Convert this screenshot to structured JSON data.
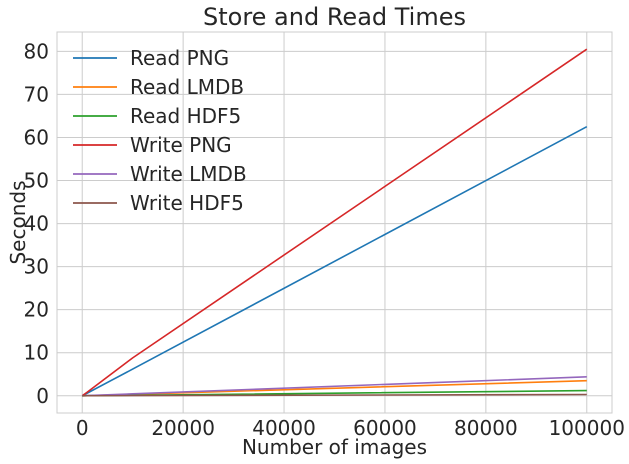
{
  "chart_data": {
    "type": "line",
    "title": "Store and Read Times",
    "xlabel": "Number of images",
    "ylabel": "Seconds",
    "x": [
      10,
      100,
      1000,
      10000,
      100000
    ],
    "xlim": [
      -5000,
      105000
    ],
    "ylim": [
      -4,
      84.5
    ],
    "xticks": [
      0,
      20000,
      40000,
      60000,
      80000,
      100000
    ],
    "yticks": [
      0,
      10,
      20,
      30,
      40,
      50,
      60,
      70,
      80
    ],
    "grid": true,
    "legend_position": "top-left",
    "series": [
      {
        "name": "Read PNG",
        "color": "#1f77b4",
        "values": [
          0.006,
          0.06,
          0.62,
          6.2,
          62.5
        ]
      },
      {
        "name": "Read LMDB",
        "color": "#ff7f0e",
        "values": [
          0.0004,
          0.004,
          0.035,
          0.35,
          3.5
        ]
      },
      {
        "name": "Read HDF5",
        "color": "#2ca02c",
        "values": [
          0.0001,
          0.001,
          0.012,
          0.12,
          1.2
        ]
      },
      {
        "name": "Write PNG",
        "color": "#d62728",
        "values": [
          0.008,
          0.08,
          0.85,
          8.8,
          80.5
        ]
      },
      {
        "name": "Write LMDB",
        "color": "#9467bd",
        "values": [
          0.0005,
          0.005,
          0.045,
          0.45,
          4.4
        ]
      },
      {
        "name": "Write HDF5",
        "color": "#8c564b",
        "values": [
          0.0001,
          0.0005,
          0.004,
          0.04,
          0.3
        ]
      }
    ]
  }
}
